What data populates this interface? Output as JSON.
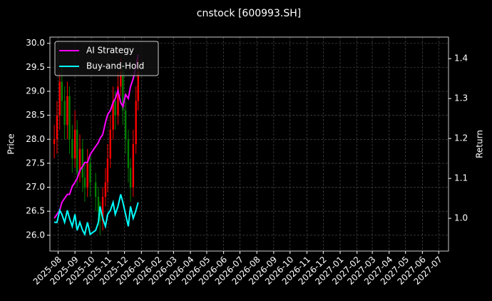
{
  "chart_data": {
    "type": "candlestick",
    "title": "cnstock [600993.SH]",
    "ylabel": "Price",
    "y2label": "Return",
    "x": [
      "2025-07-25",
      "2025-07-30",
      "2025-08-04",
      "2025-08-08",
      "2025-08-13",
      "2025-08-18",
      "2025-08-22",
      "2025-08-27",
      "2025-09-01",
      "2025-09-05",
      "2025-09-10",
      "2025-09-15",
      "2025-09-19",
      "2025-09-24",
      "2025-09-29",
      "2025-10-09",
      "2025-10-14",
      "2025-10-17",
      "2025-10-22",
      "2025-10-27",
      "2025-10-31",
      "2025-11-05",
      "2025-11-10",
      "2025-11-14",
      "2025-11-19",
      "2025-11-24",
      "2025-11-28",
      "2025-12-03",
      "2025-12-08",
      "2025-12-12",
      "2025-12-17",
      "2025-12-22",
      "2025-12-26"
    ],
    "candles": {
      "open": [
        27.9,
        28.0,
        28.5,
        29.2,
        28.8,
        28.3,
        28.9,
        28.0,
        27.6,
        28.2,
        27.3,
        27.8,
        27.2,
        27.0,
        27.5,
        27.1,
        26.8,
        26.5,
        26.3,
        26.8,
        27.1,
        27.6,
        28.2,
        28.8,
        28.5,
        29.1,
        29.4,
        28.6,
        28.0,
        27.4,
        27.0,
        27.9,
        28.8
      ],
      "high": [
        28.3,
        28.8,
        29.4,
        29.5,
        29.1,
        29.2,
        29.1,
        28.3,
        28.6,
        28.4,
        28.1,
        28.0,
        27.5,
        27.8,
        27.7,
        27.3,
        27.0,
        26.7,
        27.0,
        27.4,
        27.9,
        28.5,
        29.1,
        29.0,
        29.4,
        29.7,
        29.6,
        28.8,
        28.2,
        27.6,
        28.2,
        29.1,
        29.7
      ],
      "low": [
        27.6,
        27.7,
        28.2,
        28.5,
        28.0,
        28.0,
        27.7,
        27.3,
        27.4,
        27.0,
        27.1,
        26.9,
        26.7,
        26.8,
        26.8,
        26.5,
        26.2,
        26.0,
        26.1,
        26.6,
        26.9,
        27.4,
        28.0,
        28.2,
        28.3,
        28.9,
        28.3,
        27.7,
        27.1,
        26.7,
        26.8,
        27.7,
        28.6
      ],
      "close": [
        28.0,
        28.5,
        29.2,
        28.8,
        28.3,
        28.9,
        28.0,
        27.6,
        28.2,
        27.3,
        27.8,
        27.2,
        27.0,
        27.5,
        27.1,
        26.8,
        26.5,
        26.3,
        26.8,
        27.1,
        27.6,
        28.2,
        28.8,
        28.5,
        29.1,
        29.4,
        28.6,
        28.0,
        27.4,
        27.0,
        27.9,
        28.8,
        29.4
      ],
      "up_color": "#ff0000",
      "down_color": "#008000"
    },
    "series": [
      {
        "name": "AI Strategy",
        "color": "#ff00ff",
        "axis": "y2",
        "values": [
          1.0,
          1.01,
          1.02,
          1.04,
          1.05,
          1.06,
          1.06,
          1.08,
          1.09,
          1.1,
          1.12,
          1.13,
          1.14,
          1.14,
          1.16,
          1.18,
          1.19,
          1.2,
          1.21,
          1.24,
          1.26,
          1.27,
          1.29,
          1.3,
          1.32,
          1.29,
          1.28,
          1.31,
          1.3,
          1.33,
          1.35,
          1.38,
          1.41
        ]
      },
      {
        "name": "Buy-and-Hold",
        "color": "#00ffff",
        "axis": "y2",
        "values": [
          0.99,
          0.99,
          1.02,
          1.01,
          0.99,
          1.02,
          1.0,
          0.98,
          1.01,
          0.97,
          0.99,
          0.97,
          0.96,
          0.99,
          0.96,
          0.97,
          0.99,
          1.03,
          1.0,
          0.98,
          1.01,
          1.02,
          1.04,
          1.01,
          1.03,
          1.06,
          1.04,
          1.01,
          0.98,
          1.03,
          1.0,
          1.02,
          1.04
        ]
      }
    ],
    "xlim": [
      "2025-07-17",
      "2027-07-19"
    ],
    "xticks": [
      "2025-08",
      "2025-09",
      "2025-10",
      "2025-11",
      "2025-12",
      "2026-01",
      "2026-02",
      "2026-03",
      "2026-04",
      "2026-05",
      "2026-06",
      "2026-07",
      "2026-08",
      "2026-09",
      "2026-10",
      "2026-11",
      "2026-12",
      "2027-01",
      "2027-02",
      "2027-03",
      "2027-04",
      "2027-05",
      "2027-06",
      "2027-07"
    ],
    "ylim": [
      25.67,
      30.13
    ],
    "yticks": [
      {
        "value": 26,
        "label": "26.0"
      },
      26.5,
      {
        "value": 27,
        "label": "27.0"
      },
      27.5,
      {
        "value": 28,
        "label": "28.0"
      },
      28.5,
      {
        "value": 29,
        "label": "29.0"
      },
      29.5,
      {
        "value": 30,
        "label": "30.0"
      }
    ],
    "y2lim": [
      0.918,
      1.454
    ],
    "y2ticks": [
      {
        "value": 1,
        "label": "1.0"
      },
      1.1,
      1.2,
      1.3,
      1.4
    ],
    "grid": true,
    "legend": "upper left"
  }
}
